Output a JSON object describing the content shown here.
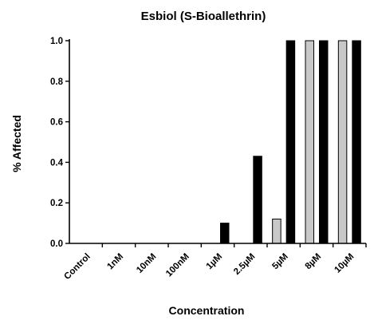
{
  "chart_data": {
    "type": "bar",
    "title": "Esbiol (S-Bioallethrin)",
    "xlabel": "Concentration",
    "ylabel": "% Affected",
    "ylim": [
      0,
      1.0
    ],
    "yticks": [
      "0.0",
      "0.2",
      "0.4",
      "0.6",
      "0.8",
      "1.0"
    ],
    "categories": [
      "Control",
      "1nM",
      "10nM",
      "100nM",
      "1µM",
      "2.5µM",
      "5µM",
      "8µM",
      "10µM"
    ],
    "series": [
      {
        "values": [
          0,
          0,
          0,
          0,
          0,
          0,
          0.12,
          1.0,
          1.0
        ],
        "color": "#c8c8c8"
      },
      {
        "values": [
          0,
          0,
          0,
          0,
          0.1,
          0.43,
          1.0,
          1.0,
          1.0
        ],
        "color": "#000000"
      }
    ],
    "grid": false,
    "legend": "none"
  }
}
